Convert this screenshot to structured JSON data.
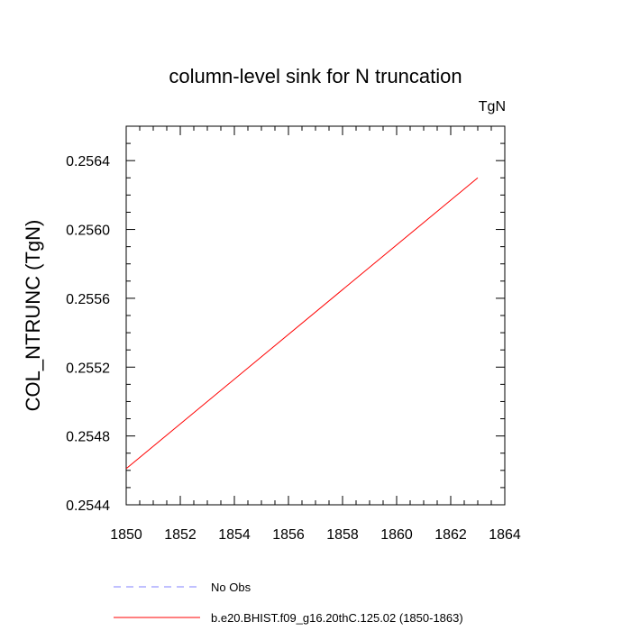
{
  "chart_data": {
    "type": "line",
    "title": "column-level sink for N truncation",
    "units_label": "TgN",
    "ylabel": "COL_NTRUNC  (TgN)",
    "xlabel": "",
    "xlim": [
      1850,
      1864
    ],
    "ylim": [
      0.2544,
      0.2566
    ],
    "x_ticks": [
      1850,
      1852,
      1854,
      1856,
      1858,
      1860,
      1862,
      1864
    ],
    "x_tick_labels": [
      "1850",
      "1852",
      "1854",
      "1856",
      "1858",
      "1860",
      "1862",
      "1864"
    ],
    "y_ticks": [
      0.2544,
      0.2548,
      0.2552,
      0.2556,
      0.256,
      0.2564
    ],
    "y_tick_labels": [
      "0.2544",
      "0.2548",
      "0.2552",
      "0.2556",
      "0.2560",
      "0.2564"
    ],
    "grid": false,
    "legend_position": "bottom",
    "series": [
      {
        "name": "No Obs",
        "color": "#8080ff",
        "dash": true,
        "x": [],
        "y": []
      },
      {
        "name": "b.e20.BHIST.f09_g16.20thC.125.02 (1850-1863)",
        "color": "#ff0000",
        "dash": false,
        "x": [
          1850,
          1863
        ],
        "y": [
          0.25461,
          0.2563
        ]
      }
    ]
  }
}
